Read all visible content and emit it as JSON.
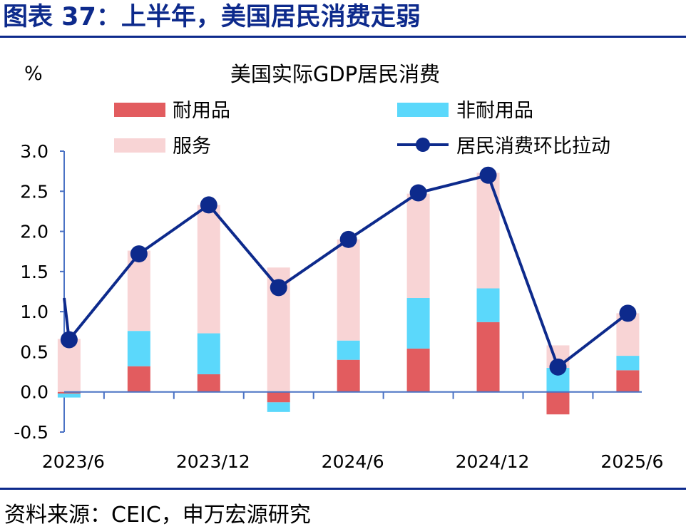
{
  "figure_title": "图表 37：上半年，美国居民消费走弱",
  "source": "资料来源：CEIC，申万宏源研究",
  "colors": {
    "durable": "#e25c5f",
    "nondurable": "#5bd8fb",
    "services": "#f8d4d5",
    "line": "#0d2a8c",
    "axis": "#4a72c4",
    "rule": "#0d2a8c"
  },
  "chart_data": {
    "type": "bar",
    "subtype": "stacked bar with line",
    "title": "美国实际GDP居民消费",
    "ylabel": "%",
    "xlabel": "",
    "ylim": [
      -0.5,
      3.0
    ],
    "yticks": [
      "3.0",
      "2.5",
      "2.0",
      "1.5",
      "1.0",
      "0.5",
      "0.0",
      "-0.5"
    ],
    "xtick_labels": [
      "2023/6",
      "2023/12",
      "2024/6",
      "2024/12",
      "2025/6"
    ],
    "legend_position": "top",
    "categories": [
      "2023Q2",
      "2023Q3",
      "2023Q4",
      "2024Q1",
      "2024Q2",
      "2024Q3",
      "2024Q4",
      "2025Q1",
      "2025Q2"
    ],
    "series": [
      {
        "name": "耐用品",
        "kind": "bar",
        "values": [
          -0.02,
          0.32,
          0.22,
          -0.13,
          0.4,
          0.54,
          0.87,
          -0.28,
          0.27
        ]
      },
      {
        "name": "非耐用品",
        "kind": "bar",
        "values": [
          -0.05,
          0.44,
          0.51,
          -0.12,
          0.24,
          0.63,
          0.42,
          0.3,
          0.18
        ]
      },
      {
        "name": "服务",
        "kind": "bar",
        "values": [
          0.66,
          1.0,
          1.6,
          1.55,
          1.26,
          1.3,
          1.44,
          0.28,
          0.53
        ]
      },
      {
        "name": "居民消费环比拉动",
        "kind": "line",
        "values": [
          0.65,
          1.72,
          2.33,
          1.3,
          1.9,
          2.48,
          2.7,
          0.31,
          0.98
        ]
      }
    ]
  }
}
